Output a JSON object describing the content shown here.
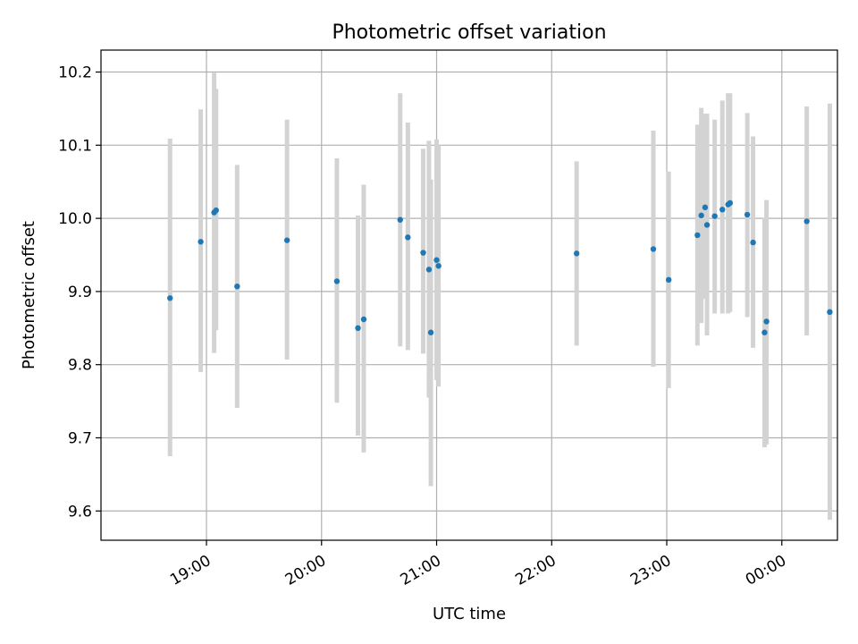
{
  "chart_data": {
    "type": "scatter",
    "title": "Photometric offset variation",
    "xlabel": "UTC time",
    "ylabel": "Photometric offset",
    "grid": true,
    "legend": "none",
    "xlim": [
      "18:05",
      "24:29"
    ],
    "ylim": [
      9.56,
      10.23
    ],
    "x_ticks": [
      {
        "value": "19:00",
        "label": "19:00"
      },
      {
        "value": "20:00",
        "label": "20:00"
      },
      {
        "value": "21:00",
        "label": "21:00"
      },
      {
        "value": "22:00",
        "label": "22:00"
      },
      {
        "value": "23:00",
        "label": "23:00"
      },
      {
        "value": "24:00",
        "label": "00:00"
      }
    ],
    "y_ticks": [
      9.6,
      9.7,
      9.8,
      9.9,
      10.0,
      10.1,
      10.2
    ],
    "colors": {
      "point": "#1f77b4",
      "errorbar": "#d3d3d3",
      "grid": "#b0b0b0"
    },
    "points": [
      {
        "x": "18:41",
        "y": 9.891,
        "ylow": 9.675,
        "yhigh": 10.109
      },
      {
        "x": "18:57",
        "y": 9.968,
        "ylow": 9.79,
        "yhigh": 10.149
      },
      {
        "x": "19:04",
        "y": 10.008,
        "ylow": 9.816,
        "yhigh": 10.199
      },
      {
        "x": "19:05",
        "y": 10.011,
        "ylow": 9.847,
        "yhigh": 10.177
      },
      {
        "x": "19:16",
        "y": 9.907,
        "ylow": 9.741,
        "yhigh": 10.073
      },
      {
        "x": "19:42",
        "y": 9.97,
        "ylow": 9.807,
        "yhigh": 10.135
      },
      {
        "x": "20:08",
        "y": 9.914,
        "ylow": 9.748,
        "yhigh": 10.082
      },
      {
        "x": "20:19",
        "y": 9.85,
        "ylow": 9.703,
        "yhigh": 10.004
      },
      {
        "x": "20:22",
        "y": 9.862,
        "ylow": 9.68,
        "yhigh": 10.046
      },
      {
        "x": "20:41",
        "y": 9.998,
        "ylow": 9.825,
        "yhigh": 10.171
      },
      {
        "x": "20:45",
        "y": 9.974,
        "ylow": 9.82,
        "yhigh": 10.131
      },
      {
        "x": "20:53",
        "y": 9.953,
        "ylow": 9.815,
        "yhigh": 10.095
      },
      {
        "x": "20:56",
        "y": 9.93,
        "ylow": 9.755,
        "yhigh": 10.106
      },
      {
        "x": "20:57",
        "y": 9.844,
        "ylow": 9.634,
        "yhigh": 10.053
      },
      {
        "x": "21:00",
        "y": 9.943,
        "ylow": 9.779,
        "yhigh": 10.108
      },
      {
        "x": "21:01",
        "y": 9.935,
        "ylow": 9.77,
        "yhigh": 10.1
      },
      {
        "x": "22:13",
        "y": 9.952,
        "ylow": 9.826,
        "yhigh": 10.078
      },
      {
        "x": "22:53",
        "y": 9.958,
        "ylow": 9.797,
        "yhigh": 10.12
      },
      {
        "x": "23:01",
        "y": 9.916,
        "ylow": 9.768,
        "yhigh": 10.064
      },
      {
        "x": "23:16",
        "y": 9.977,
        "ylow": 9.826,
        "yhigh": 10.128
      },
      {
        "x": "23:18",
        "y": 10.004,
        "ylow": 9.857,
        "yhigh": 10.151
      },
      {
        "x": "23:20",
        "y": 10.015,
        "ylow": 9.89,
        "yhigh": 10.143
      },
      {
        "x": "23:21",
        "y": 9.991,
        "ylow": 9.84,
        "yhigh": 10.143
      },
      {
        "x": "23:25",
        "y": 10.003,
        "ylow": 9.87,
        "yhigh": 10.135
      },
      {
        "x": "23:29",
        "y": 10.012,
        "ylow": 9.87,
        "yhigh": 10.161
      },
      {
        "x": "23:32",
        "y": 10.019,
        "ylow": 9.87,
        "yhigh": 10.171
      },
      {
        "x": "23:33",
        "y": 10.021,
        "ylow": 9.872,
        "yhigh": 10.171
      },
      {
        "x": "23:42",
        "y": 10.005,
        "ylow": 9.865,
        "yhigh": 10.144
      },
      {
        "x": "23:45",
        "y": 9.967,
        "ylow": 9.823,
        "yhigh": 10.112
      },
      {
        "x": "23:51",
        "y": 9.844,
        "ylow": 9.687,
        "yhigh": 10.001
      },
      {
        "x": "23:52",
        "y": 9.859,
        "ylow": 9.691,
        "yhigh": 10.025
      },
      {
        "x": "24:13",
        "y": 9.996,
        "ylow": 9.84,
        "yhigh": 10.153
      },
      {
        "x": "24:25",
        "y": 9.872,
        "ylow": 9.588,
        "yhigh": 10.157
      }
    ]
  }
}
